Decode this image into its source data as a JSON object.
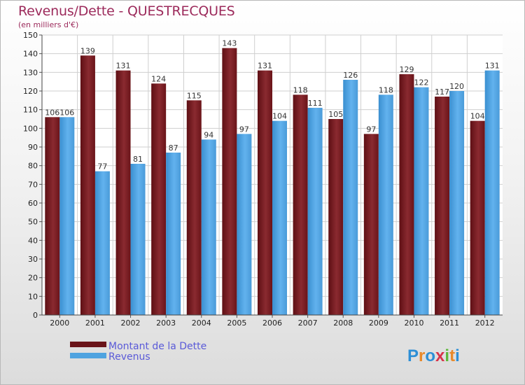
{
  "title": "Revenus/Dette - QUESTRECQUES",
  "subtitle": "(en milliers d'€)",
  "logo_text": "Proxiti",
  "colors": {
    "dette": "#7a1a20",
    "revenus": "#4fa3e0",
    "title": "#9c2a5b",
    "legend_text": "#5a5ad8"
  },
  "chart_data": {
    "type": "bar",
    "title": "Revenus/Dette - QUESTRECQUES",
    "ylabel": "(en milliers d'€)",
    "xlabel": "",
    "categories": [
      "2000",
      "2001",
      "2002",
      "2003",
      "2004",
      "2005",
      "2006",
      "2007",
      "2008",
      "2009",
      "2010",
      "2011",
      "2012"
    ],
    "series": [
      {
        "name": "Montant de la Dette",
        "values": [
          106,
          139,
          131,
          124,
          115,
          143,
          131,
          118,
          105,
          97,
          129,
          117,
          104
        ]
      },
      {
        "name": "Revenus",
        "values": [
          106,
          77,
          81,
          87,
          94,
          97,
          104,
          111,
          126,
          118,
          122,
          120,
          131
        ]
      }
    ],
    "ylim": [
      0,
      150
    ],
    "yticks": [
      0,
      10,
      20,
      30,
      40,
      50,
      60,
      70,
      80,
      90,
      100,
      110,
      120,
      130,
      140,
      150
    ],
    "grid": true,
    "legend": "bottom-left"
  }
}
